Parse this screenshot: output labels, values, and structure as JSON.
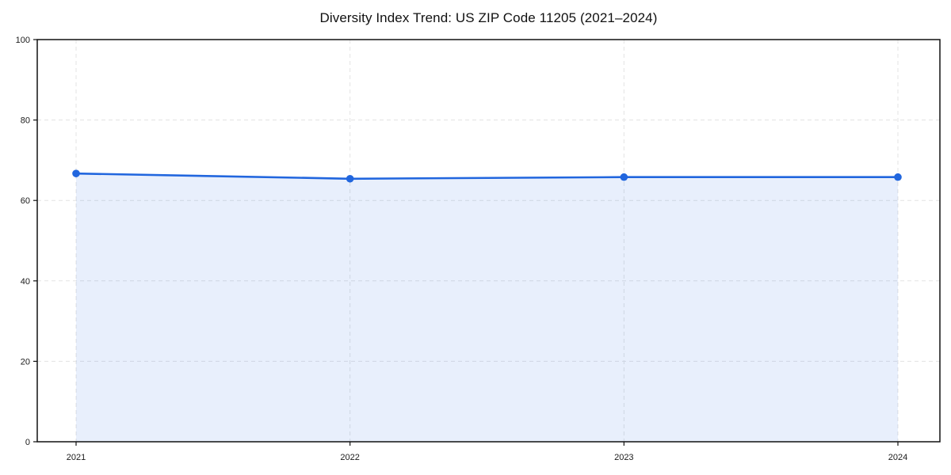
{
  "chart_data": {
    "type": "area",
    "title": "Diversity Index Trend: US ZIP Code 11205 (2021–2024)",
    "x": [
      2021,
      2022,
      2023,
      2024
    ],
    "x_labels": [
      "2021",
      "2022",
      "2023",
      "2024"
    ],
    "values": [
      66.7,
      65.4,
      65.8,
      65.8
    ],
    "xlabel": "",
    "ylabel": "",
    "ylim": [
      0,
      100
    ],
    "yticks": [
      0,
      20,
      40,
      60,
      80,
      100
    ],
    "grid": true,
    "grid_style": "dashed",
    "legend_position": "none",
    "colors": {
      "line": "#2166de",
      "marker": "#2166de",
      "fill": "rgba(33,102,222,0.10)",
      "grid": "#e3e3e3",
      "spine": "#111111",
      "text": "#1a1a1a",
      "background": "#ffffff"
    }
  }
}
